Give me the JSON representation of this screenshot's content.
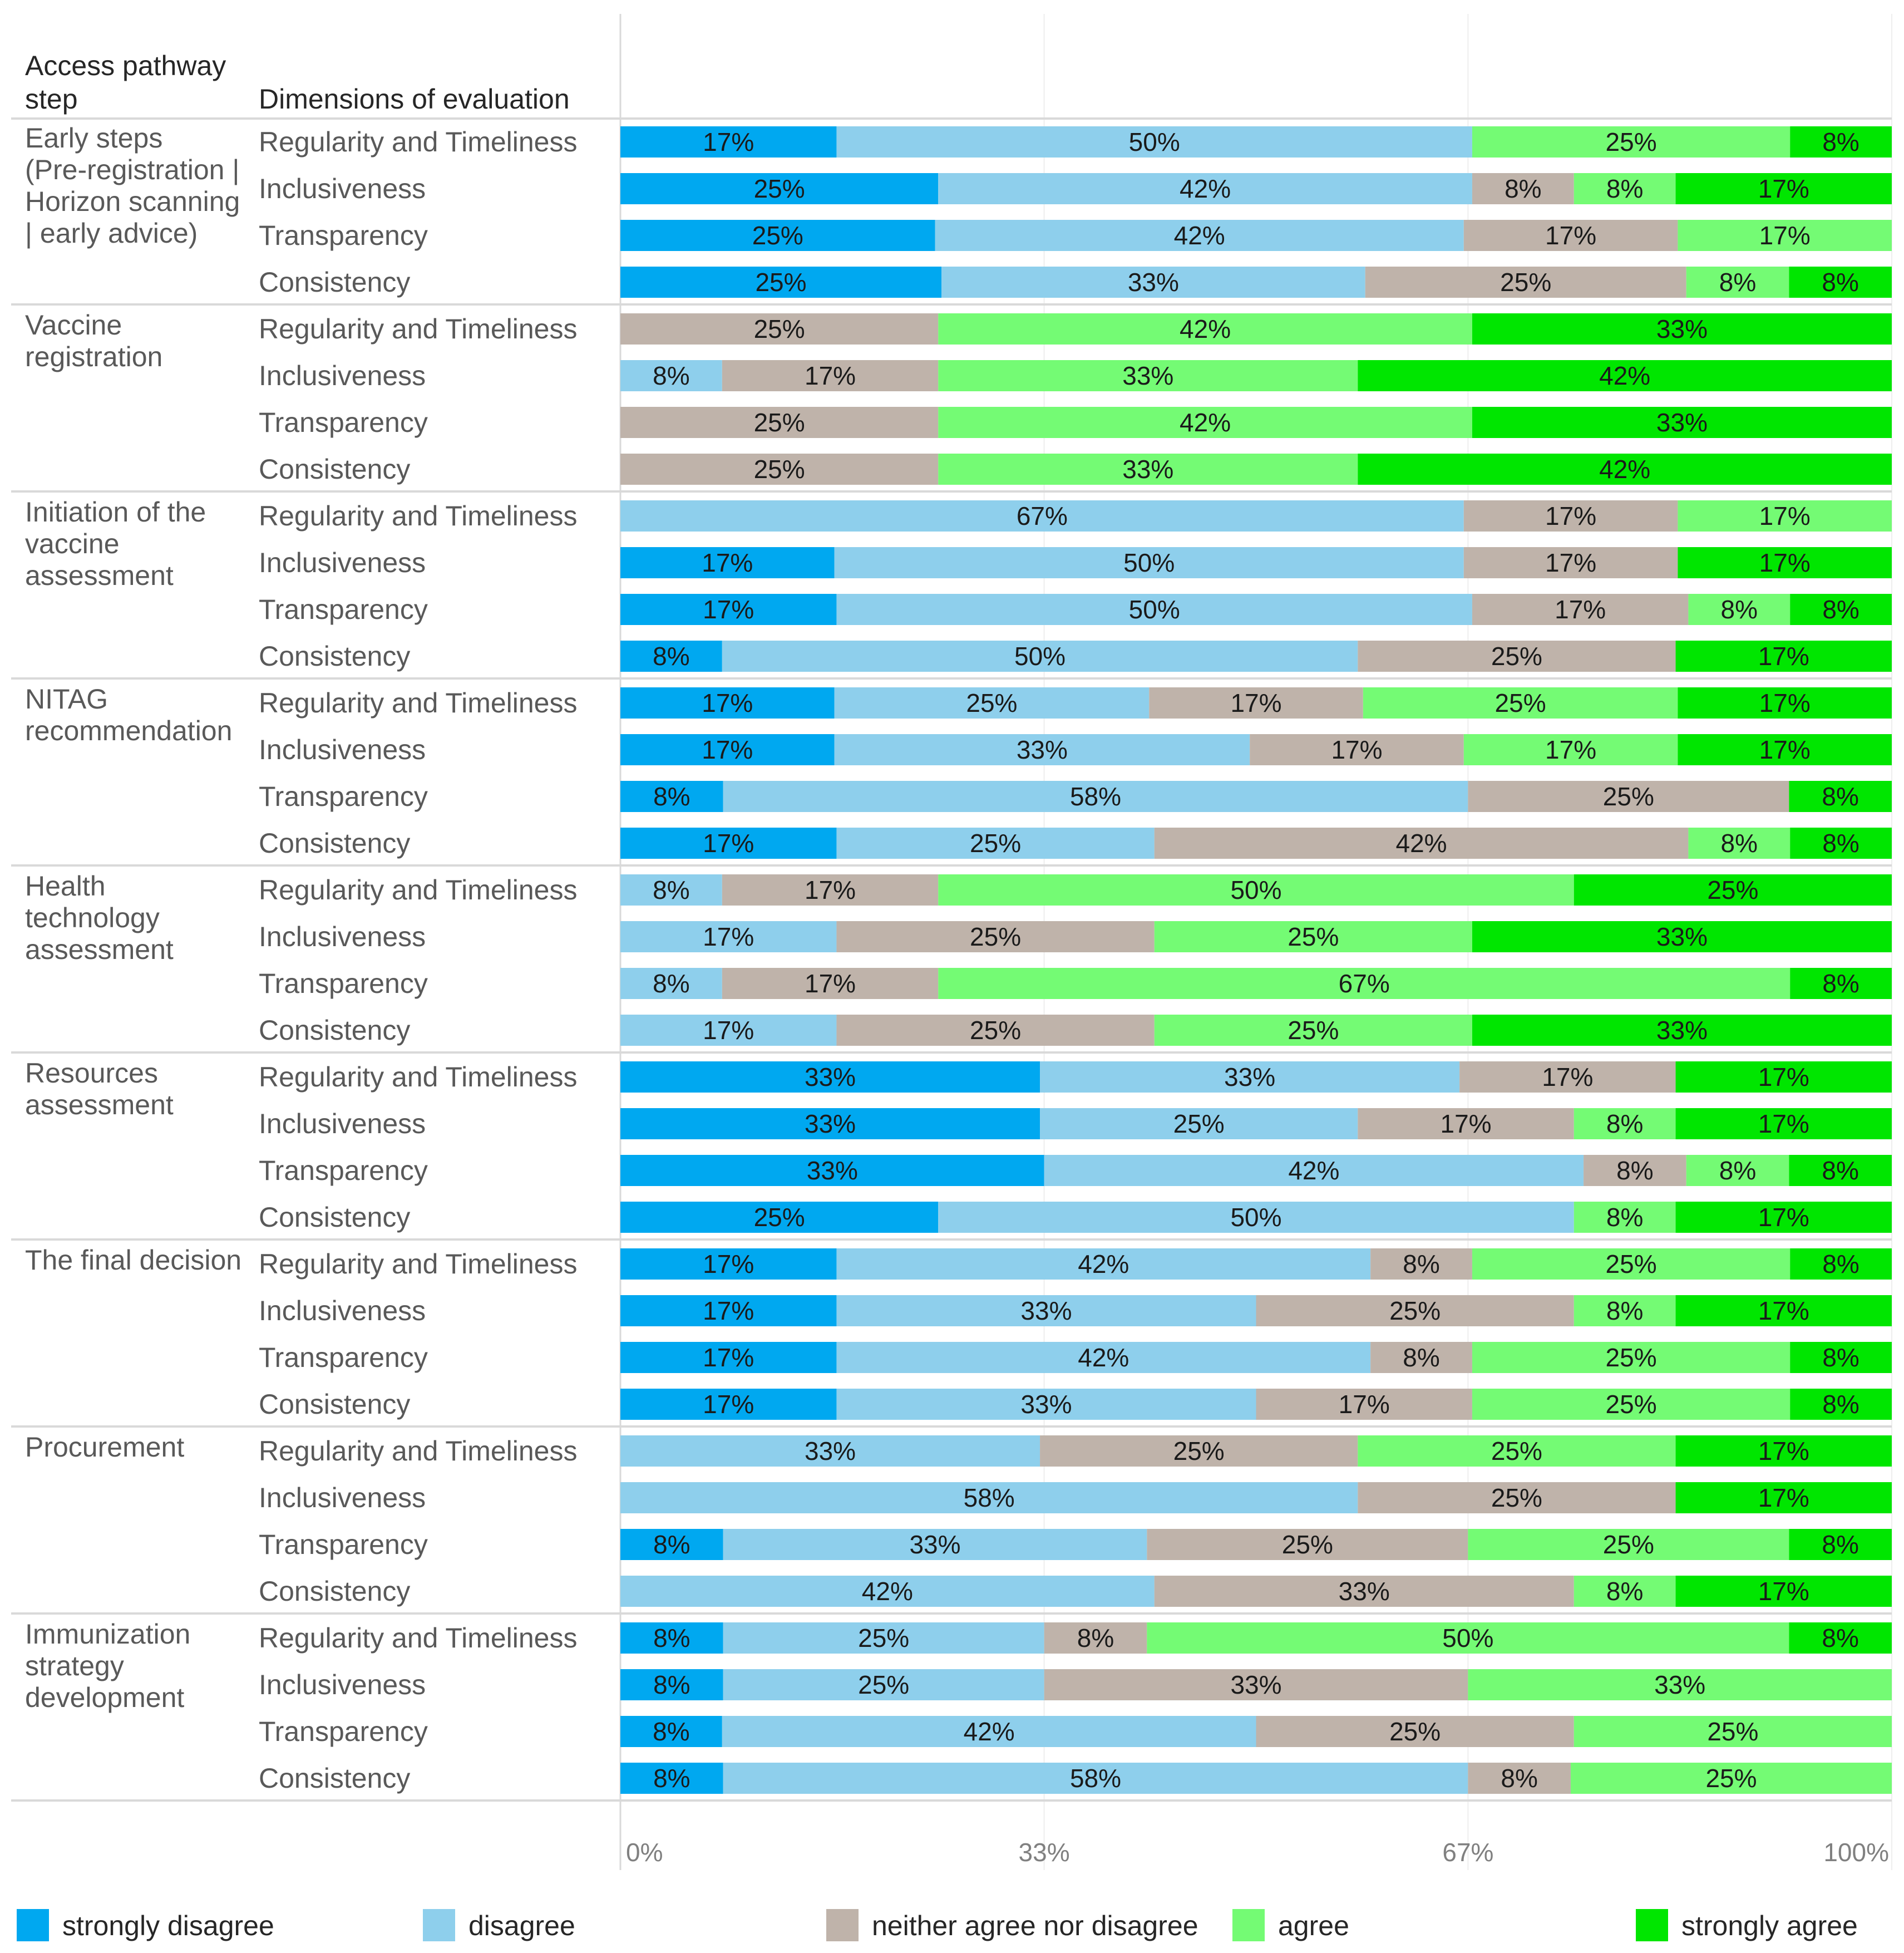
{
  "chart_data": {
    "type": "bar",
    "orientation": "horizontal",
    "stacked": true,
    "normalized": true,
    "header": {
      "step": [
        "Access pathway",
        "step"
      ],
      "dimension": "Dimensions of evaluation"
    },
    "categories_legend": [
      "strongly disagree",
      "disagree",
      "neither agree nor disagree",
      "agree",
      "strongly agree"
    ],
    "colors": [
      "#00a8f0",
      "#8ecfec",
      "#bfb3aa",
      "#74fb74",
      "#00e600"
    ],
    "xticks": [
      "0%",
      "33%",
      "67%",
      "100%"
    ],
    "xlim": [
      0,
      100
    ],
    "grid": true,
    "legend_position": "bottom",
    "groups": [
      {
        "step": [
          "Early steps",
          "(Pre-registration |",
          "Horizon scanning",
          "| early advice)"
        ],
        "rows": [
          {
            "dimension": "Regularity and Timeliness",
            "values": [
              17,
              50,
              0,
              25,
              8
            ]
          },
          {
            "dimension": "Inclusiveness",
            "values": [
              25,
              42,
              8,
              8,
              17
            ]
          },
          {
            "dimension": "Transparency",
            "values": [
              25,
              42,
              17,
              17,
              0
            ]
          },
          {
            "dimension": "Consistency",
            "values": [
              25,
              33,
              25,
              8,
              8
            ]
          }
        ]
      },
      {
        "step": [
          "Vaccine",
          "registration"
        ],
        "rows": [
          {
            "dimension": "Regularity and Timeliness",
            "values": [
              0,
              0,
              25,
              42,
              33
            ]
          },
          {
            "dimension": "Inclusiveness",
            "values": [
              0,
              8,
              17,
              33,
              42
            ]
          },
          {
            "dimension": "Transparency",
            "values": [
              0,
              0,
              25,
              42,
              33
            ]
          },
          {
            "dimension": "Consistency",
            "values": [
              0,
              0,
              25,
              33,
              42
            ]
          }
        ]
      },
      {
        "step": [
          "Initiation of the",
          "vaccine",
          "assessment"
        ],
        "rows": [
          {
            "dimension": "Regularity and Timeliness",
            "values": [
              0,
              67,
              17,
              17,
              0
            ]
          },
          {
            "dimension": "Inclusiveness",
            "values": [
              17,
              50,
              17,
              0,
              17
            ]
          },
          {
            "dimension": "Transparency",
            "values": [
              17,
              50,
              17,
              8,
              8
            ]
          },
          {
            "dimension": "Consistency",
            "values": [
              8,
              50,
              25,
              0,
              17
            ]
          }
        ]
      },
      {
        "step": [
          "NITAG",
          "recommendation"
        ],
        "rows": [
          {
            "dimension": "Regularity and Timeliness",
            "values": [
              17,
              25,
              17,
              25,
              17
            ]
          },
          {
            "dimension": "Inclusiveness",
            "values": [
              17,
              33,
              17,
              17,
              17
            ]
          },
          {
            "dimension": "Transparency",
            "values": [
              8,
              58,
              25,
              0,
              8
            ]
          },
          {
            "dimension": "Consistency",
            "values": [
              17,
              25,
              42,
              8,
              8
            ]
          }
        ]
      },
      {
        "step": [
          "Health",
          "technology",
          "assessment"
        ],
        "rows": [
          {
            "dimension": "Regularity and Timeliness",
            "values": [
              0,
              8,
              17,
              50,
              25
            ]
          },
          {
            "dimension": "Inclusiveness",
            "values": [
              0,
              17,
              25,
              25,
              33
            ]
          },
          {
            "dimension": "Transparency",
            "values": [
              0,
              8,
              17,
              67,
              8
            ]
          },
          {
            "dimension": "Consistency",
            "values": [
              0,
              17,
              25,
              25,
              33
            ]
          }
        ]
      },
      {
        "step": [
          "Resources",
          "assessment"
        ],
        "rows": [
          {
            "dimension": "Regularity and Timeliness",
            "values": [
              33,
              33,
              17,
              0,
              17
            ]
          },
          {
            "dimension": "Inclusiveness",
            "values": [
              33,
              25,
              17,
              8,
              17
            ]
          },
          {
            "dimension": "Transparency",
            "values": [
              33,
              42,
              8,
              8,
              8
            ]
          },
          {
            "dimension": "Consistency",
            "values": [
              25,
              50,
              0,
              8,
              17
            ]
          }
        ]
      },
      {
        "step": [
          "The final decision"
        ],
        "rows": [
          {
            "dimension": "Regularity and Timeliness",
            "values": [
              17,
              42,
              8,
              25,
              8
            ]
          },
          {
            "dimension": "Inclusiveness",
            "values": [
              17,
              33,
              25,
              8,
              17
            ]
          },
          {
            "dimension": "Transparency",
            "values": [
              17,
              42,
              8,
              25,
              8
            ]
          },
          {
            "dimension": "Consistency",
            "values": [
              17,
              33,
              17,
              25,
              8
            ]
          }
        ]
      },
      {
        "step": [
          "Procurement"
        ],
        "rows": [
          {
            "dimension": "Regularity and Timeliness",
            "values": [
              0,
              33,
              25,
              25,
              17
            ]
          },
          {
            "dimension": "Inclusiveness",
            "values": [
              0,
              58,
              25,
              0,
              17
            ]
          },
          {
            "dimension": "Transparency",
            "values": [
              8,
              33,
              25,
              25,
              8
            ]
          },
          {
            "dimension": "Consistency",
            "values": [
              0,
              42,
              33,
              8,
              17
            ]
          }
        ]
      },
      {
        "step": [
          "Immunization",
          "strategy",
          "development"
        ],
        "rows": [
          {
            "dimension": "Regularity and Timeliness",
            "values": [
              8,
              25,
              8,
              50,
              8
            ]
          },
          {
            "dimension": "Inclusiveness",
            "values": [
              8,
              25,
              33,
              33,
              0
            ]
          },
          {
            "dimension": "Transparency",
            "values": [
              8,
              42,
              25,
              25,
              0
            ]
          },
          {
            "dimension": "Consistency",
            "values": [
              8,
              58,
              8,
              25,
              0
            ]
          }
        ]
      }
    ]
  }
}
